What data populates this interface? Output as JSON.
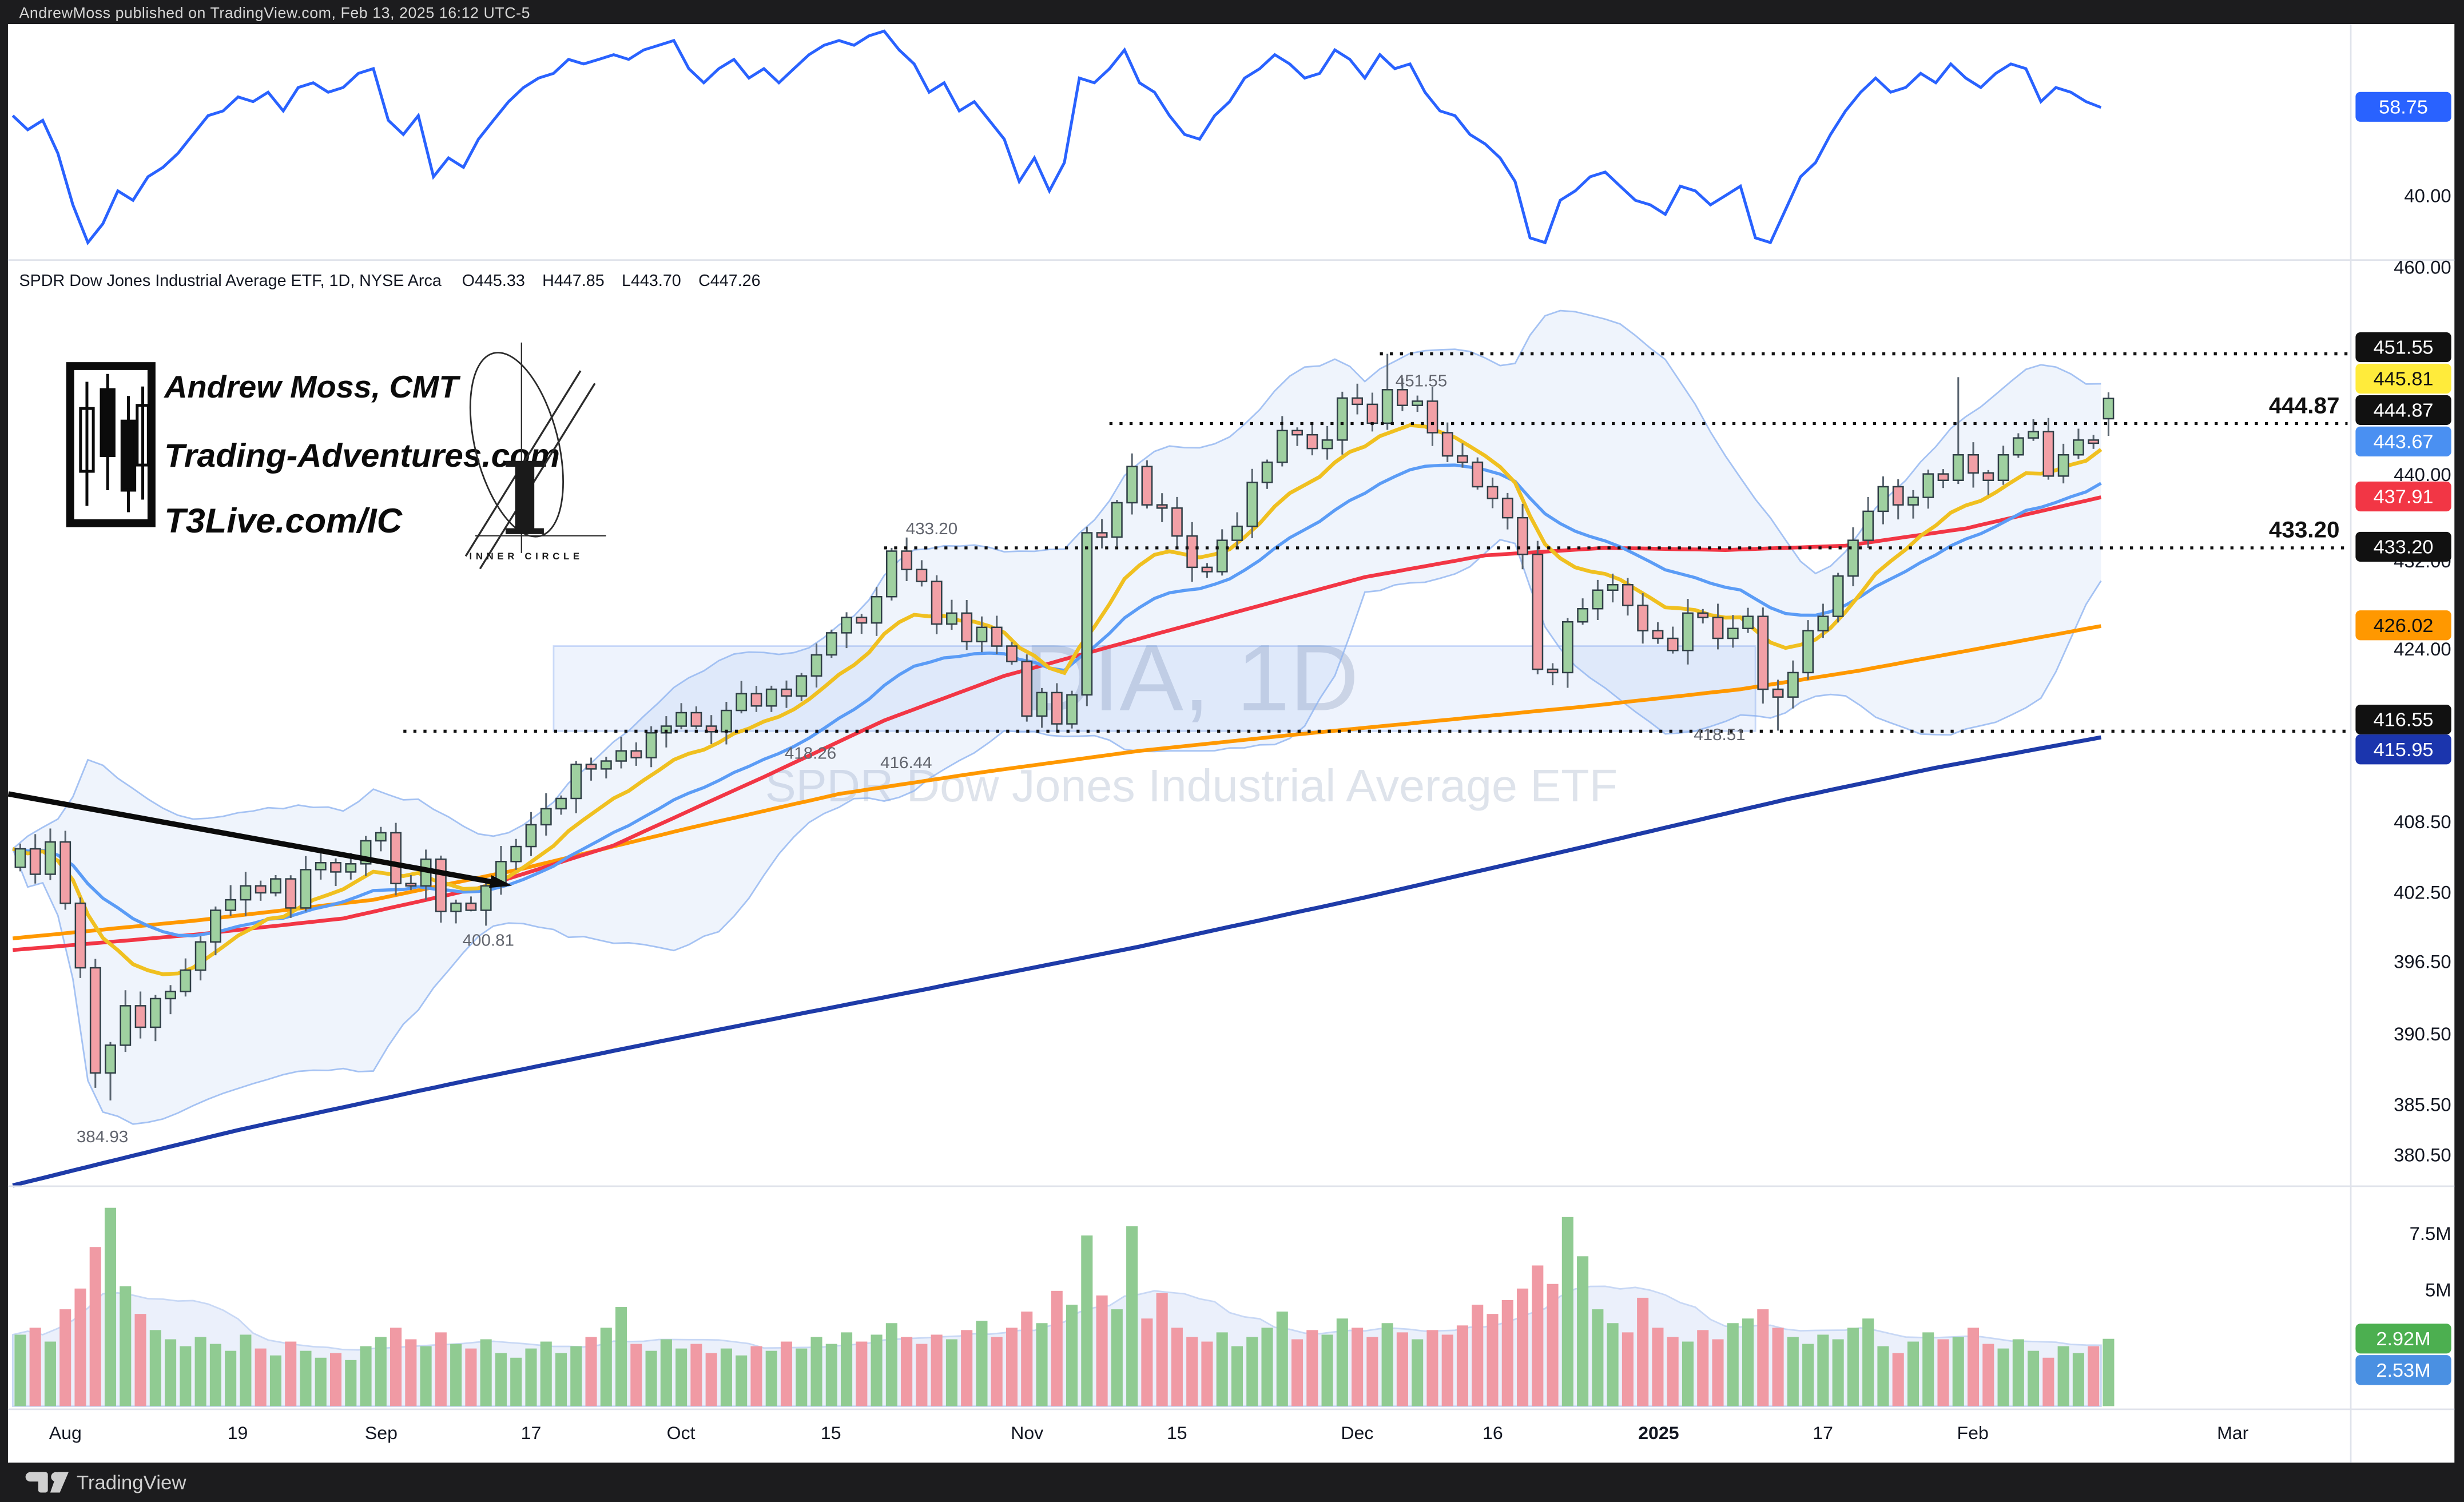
{
  "top_bar": {
    "text": "AndrewMoss published on TradingView.com, Feb 13, 2025 16:12 UTC-5"
  },
  "bottom_bar": {
    "brand": "TradingView"
  },
  "legend": {
    "symbol": "SPDR Dow Jones Industrial Average ETF, 1D, NYSE Arca",
    "open": "O445.33",
    "high": "H447.85",
    "low": "L443.70",
    "close": "C447.26"
  },
  "branding": {
    "line1": "Andrew Moss, CMT",
    "line2": "Trading-Adventures.com",
    "line3": "T3Live.com/IC",
    "badge": "INNER CIRCLE"
  },
  "watermark": {
    "line1": "DIA, 1D",
    "line2": "SPDR Dow Jones Industrial Average ETF"
  },
  "colors": {
    "frame": "#1c1c1e",
    "card": "#ffffff",
    "separator": "#e0e3eb",
    "axis_text": "#131722",
    "annotation_text": "#62656e",
    "up": "#9FD0A0",
    "down": "#F2A0A6",
    "candle_border": "#2F3E46",
    "wick": "#5A6570",
    "volume_up": "#90CB92",
    "volume_down": "#F09AA4",
    "volume_ma_fill": "#E9EFFB",
    "volume_ma_line": "#C3D4F5",
    "rsi_line": "#2962FF",
    "ema10": "#F0C020",
    "ema21": "#5B9CF6",
    "sma50": "#F23645",
    "sma100": "#FF9800",
    "sma200": "#1E3BA8",
    "boll_fill": "rgba(100,150,230,0.10)",
    "boll_line": "rgba(144,180,240,0.8)",
    "zone_fill": "rgba(90,140,235,0.10)",
    "zone_line": "rgba(90,140,235,0.30)",
    "level_line": "#111111",
    "watermark1": "#D8DDE6",
    "watermark2": "#DEE3EB"
  },
  "chart_data": {
    "type": "candlestick",
    "symbol": "DIA",
    "timeframe": "1D",
    "exchange": "NYSE Arca",
    "price_scale": "log",
    "last_ohlc": {
      "open": 445.33,
      "high": 447.85,
      "low": 443.7,
      "close": 447.26
    },
    "price_axis_ticks": [
      {
        "label": "460.00",
        "y": 170
      },
      {
        "label": "440.00",
        "y": 302
      },
      {
        "label": "432.00",
        "y": 357
      },
      {
        "label": "424.00",
        "y": 413
      },
      {
        "label": "408.50",
        "y": 523
      },
      {
        "label": "402.50",
        "y": 568
      },
      {
        "label": "396.50",
        "y": 612
      },
      {
        "label": "390.50",
        "y": 658
      },
      {
        "label": "385.50",
        "y": 703
      },
      {
        "label": "380.50",
        "y": 735
      }
    ],
    "price_badges": [
      {
        "label": "451.55",
        "y": 221,
        "bg": "#111111",
        "fg": "#ffffff"
      },
      {
        "label": "445.81",
        "y": 241,
        "bg": "#FFEB3B",
        "fg": "#111111"
      },
      {
        "label": "444.87",
        "y": 261,
        "bg": "#111111",
        "fg": "#ffffff"
      },
      {
        "label": "443.67",
        "y": 281,
        "bg": "#4A90F2",
        "fg": "#ffffff"
      },
      {
        "label": "437.91",
        "y": 316,
        "bg": "#F23645",
        "fg": "#ffffff"
      },
      {
        "label": "433.20",
        "y": 348,
        "bg": "#111111",
        "fg": "#ffffff"
      },
      {
        "label": "426.02",
        "y": 398,
        "bg": "#FF9800",
        "fg": "#111111"
      },
      {
        "label": "416.55",
        "y": 458,
        "bg": "#111111",
        "fg": "#ffffff"
      },
      {
        "label": "415.95",
        "y": 477,
        "bg": "#1B35AD",
        "fg": "#ffffff"
      }
    ],
    "time_axis": [
      {
        "label": "Aug",
        "x": 41
      },
      {
        "label": "19",
        "x": 149
      },
      {
        "label": "Sep",
        "x": 239
      },
      {
        "label": "17",
        "x": 333
      },
      {
        "label": "Oct",
        "x": 427
      },
      {
        "label": "15",
        "x": 521
      },
      {
        "label": "Nov",
        "x": 644
      },
      {
        "label": "15",
        "x": 738
      },
      {
        "label": "Dec",
        "x": 851
      },
      {
        "label": "16",
        "x": 936
      },
      {
        "label": "2025",
        "x": 1040,
        "bold": true
      },
      {
        "label": "17",
        "x": 1143
      },
      {
        "label": "Feb",
        "x": 1237
      },
      {
        "label": "Mar",
        "x": 1400
      }
    ],
    "key_levels": [
      {
        "price": 451.55,
        "from_idx": 91
      },
      {
        "price": 444.87,
        "from_idx": 73
      },
      {
        "price": 433.2,
        "from_idx": 58
      },
      {
        "price": 416.55,
        "from_idx": 26
      }
    ],
    "bold_level_labels": [
      {
        "text": "444.87",
        "x": 1467,
        "y": 263
      },
      {
        "text": "433.20",
        "x": 1467,
        "y": 342
      }
    ],
    "annotations": [
      {
        "text": "451.55",
        "x": 875,
        "y": 246
      },
      {
        "text": "433.20",
        "x": 568,
        "y": 340
      },
      {
        "text": "418.26",
        "x": 492,
        "y": 483
      },
      {
        "text": "416.44",
        "x": 552,
        "y": 489
      },
      {
        "text": "418.51",
        "x": 1062,
        "y": 471
      },
      {
        "text": "400.81",
        "x": 290,
        "y": 602
      },
      {
        "text": "384.93",
        "x": 48,
        "y": 727
      }
    ],
    "closes": [
      406.2,
      404.0,
      406.8,
      401.5,
      396.0,
      387.2,
      389.5,
      392.8,
      391.0,
      393.4,
      394.0,
      395.8,
      398.2,
      400.9,
      401.8,
      403.0,
      402.4,
      403.6,
      401.1,
      404.4,
      405.0,
      404.2,
      404.9,
      406.9,
      407.6,
      403.2,
      403.0,
      405.3,
      400.8,
      401.5,
      400.9,
      403.0,
      405.1,
      406.4,
      408.3,
      409.7,
      410.6,
      413.6,
      413.2,
      413.9,
      414.8,
      414.2,
      416.4,
      417.0,
      418.2,
      417.0,
      416.5,
      418.4,
      419.9,
      418.8,
      420.3,
      419.7,
      421.5,
      423.4,
      425.4,
      426.8,
      426.3,
      428.7,
      432.9,
      431.2,
      430.1,
      426.2,
      427.2,
      424.6,
      425.9,
      424.2,
      422.8,
      417.9,
      420.0,
      417.2,
      419.8,
      434.6,
      434.2,
      437.4,
      440.8,
      437.2,
      436.9,
      434.3,
      431.4,
      431.0,
      433.9,
      435.2,
      439.3,
      441.2,
      444.2,
      443.8,
      442.5,
      443.3,
      447.3,
      446.7,
      444.9,
      448.1,
      446.6,
      447.0,
      444.0,
      441.8,
      441.2,
      438.9,
      437.8,
      436.0,
      432.6,
      422.1,
      421.8,
      426.4,
      427.6,
      429.3,
      429.8,
      427.9,
      425.6,
      424.9,
      423.8,
      427.2,
      426.8,
      424.9,
      425.8,
      426.9,
      420.3,
      419.6,
      421.8,
      425.6,
      426.9,
      430.6,
      433.9,
      436.6,
      438.9,
      437.2,
      437.9,
      440.1,
      439.5,
      441.9,
      440.2,
      439.5,
      441.9,
      443.5,
      444.1,
      439.9,
      441.9,
      443.3,
      443.0,
      447.26
    ],
    "candle_overrides": {
      "6": {
        "low": 384.93
      },
      "30": {
        "low": 400.81
      },
      "49": {
        "low": 418.26
      },
      "58": {
        "high": 433.2
      },
      "69": {
        "low": 416.44
      },
      "91": {
        "high": 451.55
      },
      "117": {
        "low": 416.6
      },
      "129": {
        "high": 449.3
      },
      "139": {
        "open": 445.33,
        "high": 447.85,
        "low": 443.7,
        "close": 447.26
      }
    },
    "volumes": [
      3.1,
      3.4,
      2.8,
      4.2,
      5.1,
      6.9,
      8.6,
      5.2,
      4.0,
      3.3,
      2.9,
      2.6,
      3.0,
      2.7,
      2.4,
      3.1,
      2.5,
      2.2,
      2.8,
      2.4,
      2.1,
      2.3,
      2.0,
      2.6,
      3.0,
      3.4,
      2.9,
      2.6,
      3.2,
      2.7,
      2.5,
      2.9,
      2.3,
      2.1,
      2.5,
      2.8,
      2.3,
      2.6,
      3.0,
      3.4,
      4.3,
      2.7,
      2.4,
      2.9,
      2.5,
      2.7,
      2.3,
      2.5,
      2.2,
      2.6,
      2.4,
      2.8,
      2.5,
      3.0,
      2.7,
      3.2,
      2.8,
      3.1,
      3.6,
      3.0,
      2.7,
      3.1,
      2.9,
      3.3,
      3.7,
      3.0,
      3.4,
      4.1,
      3.6,
      5.0,
      4.4,
      7.4,
      4.8,
      4.2,
      7.8,
      3.8,
      4.9,
      3.4,
      3.0,
      2.8,
      3.2,
      2.6,
      3.0,
      3.4,
      4.1,
      2.9,
      3.3,
      3.1,
      3.8,
      3.4,
      3.0,
      3.6,
      3.2,
      2.9,
      3.3,
      3.1,
      3.5,
      4.4,
      4.0,
      4.6,
      5.1,
      6.1,
      5.3,
      8.2,
      6.5,
      4.2,
      3.6,
      3.2,
      4.7,
      3.4,
      3.0,
      2.8,
      3.3,
      2.9,
      3.6,
      3.8,
      4.2,
      3.4,
      3.0,
      2.7,
      3.1,
      2.9,
      3.4,
      3.8,
      2.6,
      2.3,
      2.8,
      3.2,
      2.9,
      3.0,
      3.4,
      2.7,
      2.5,
      2.9,
      2.4,
      2.1,
      2.6,
      2.3,
      2.6,
      2.92
    ],
    "volume_axis": {
      "ticks": [
        {
          "label": "7.5M",
          "y": 785
        },
        {
          "label": "5M",
          "y": 821
        }
      ],
      "badges": [
        {
          "label": "2.92M",
          "y": 852,
          "bg": "#4CAF50",
          "fg": "#ffffff"
        },
        {
          "label": "2.53M",
          "y": 872,
          "bg": "#4A90E2",
          "fg": "#ffffff"
        }
      ]
    },
    "rsi": {
      "last_label": "58.75",
      "badge_y": 68,
      "badge_bg": "#2962FF",
      "tick": {
        "label": "40.00",
        "y": 124.5
      },
      "series": [
        57,
        54,
        56,
        49,
        38,
        30,
        34,
        41,
        39,
        44,
        46,
        49,
        53,
        57,
        58,
        61,
        60,
        62,
        58,
        63,
        64,
        62,
        63,
        66,
        67,
        56,
        53,
        57,
        44,
        48,
        46,
        52,
        56,
        60,
        63,
        65,
        66,
        69,
        68,
        69,
        70,
        69,
        71,
        72,
        73,
        67,
        64,
        67,
        69,
        65,
        67,
        64,
        67,
        70,
        72,
        73,
        72,
        74,
        75,
        71,
        68,
        62,
        64,
        58,
        60,
        56,
        52,
        43,
        48,
        41,
        47,
        65,
        64,
        67,
        71,
        64,
        62,
        57,
        53,
        52,
        57,
        60,
        65,
        67,
        70,
        68,
        65,
        66,
        71,
        69,
        65,
        70,
        67,
        68,
        62,
        58,
        57,
        53,
        51,
        48,
        43,
        31,
        30,
        39,
        41,
        44,
        45,
        42,
        39,
        38,
        36,
        42,
        41,
        38,
        40,
        42,
        31,
        30,
        37,
        44,
        47,
        53,
        58,
        62,
        65,
        62,
        63,
        66,
        64,
        68,
        65,
        63,
        66,
        68,
        67,
        60,
        63,
        62,
        60,
        58.75
      ]
    },
    "moving_averages": {
      "ema10_period": 10,
      "ema21_period": 21,
      "sma50_points": [
        [
          0,
          397.5
        ],
        [
          12,
          398.8
        ],
        [
          22,
          400.2
        ],
        [
          31,
          402.8
        ],
        [
          40,
          406.5
        ],
        [
          50,
          412.5
        ],
        [
          58,
          417.5
        ],
        [
          66,
          421.5
        ],
        [
          74,
          424.5
        ],
        [
          82,
          427.5
        ],
        [
          90,
          430.5
        ],
        [
          98,
          432.5
        ],
        [
          106,
          433.2
        ],
        [
          114,
          433.0
        ],
        [
          122,
          433.4
        ],
        [
          130,
          435.0
        ],
        [
          139,
          437.91
        ]
      ],
      "sma100_points": [
        [
          0,
          398.5
        ],
        [
          12,
          400.0
        ],
        [
          24,
          401.8
        ],
        [
          34,
          404.5
        ],
        [
          45,
          408.0
        ],
        [
          55,
          411.0
        ],
        [
          65,
          413.0
        ],
        [
          75,
          414.8
        ],
        [
          85,
          416.2
        ],
        [
          95,
          417.5
        ],
        [
          105,
          418.8
        ],
        [
          115,
          420.3
        ],
        [
          123,
          422.0
        ],
        [
          131,
          424.0
        ],
        [
          139,
          426.02
        ]
      ],
      "sma200_points": [
        [
          0,
          378.0
        ],
        [
          15,
          382.5
        ],
        [
          30,
          386.5
        ],
        [
          45,
          390.3
        ],
        [
          60,
          394.0
        ],
        [
          75,
          397.8
        ],
        [
          90,
          402.0
        ],
        [
          105,
          406.5
        ],
        [
          118,
          410.5
        ],
        [
          128,
          413.3
        ],
        [
          139,
          416.0
        ]
      ]
    },
    "trend_line": {
      "x1_idx": -0.3,
      "p1": 411.0,
      "x2_idx": 32.5,
      "p2": 403.2
    },
    "zone_box": {
      "from_idx": 36,
      "to_idx": 116,
      "top_price": 424.2,
      "bottom_price": 416.55
    }
  }
}
